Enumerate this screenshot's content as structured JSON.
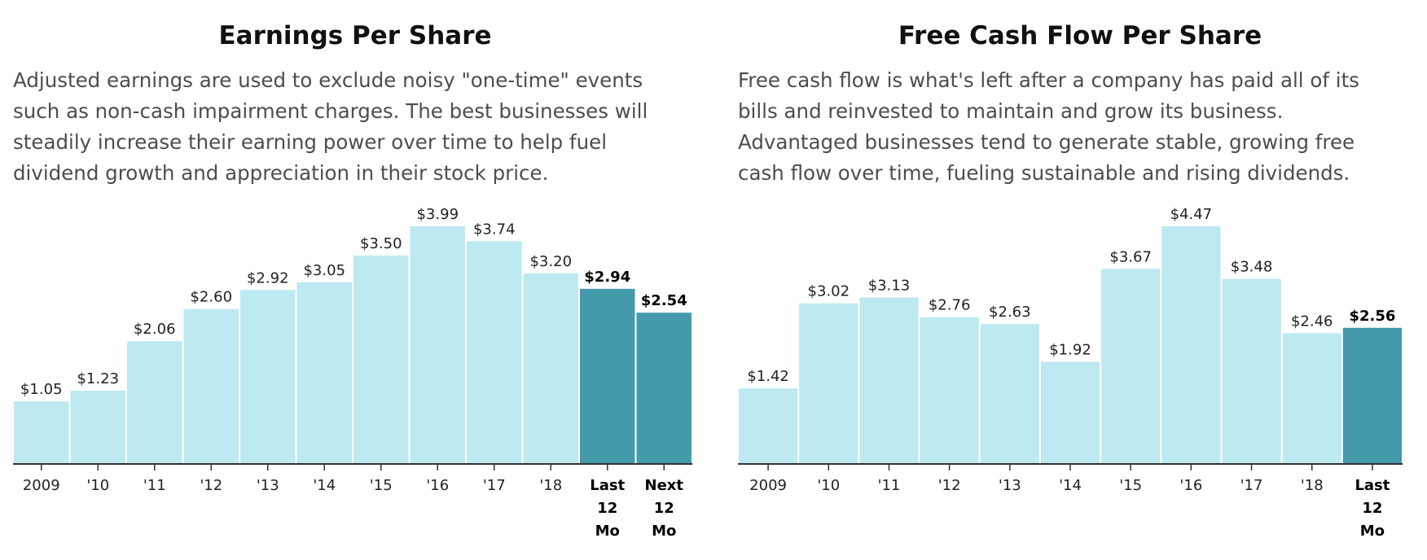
{
  "colors": {
    "bar_light": "#bde9f0",
    "bar_dark": "#459aac",
    "axis": "#333333"
  },
  "chart_data": [
    {
      "type": "bar",
      "title": "Earnings Per Share",
      "description": "Adjusted earnings are used to exclude noisy \"one-time\" events such as non-cash impairment charges. The best businesses will steadily increase their earning power over time to help fuel dividend growth and appreciation in their stock price.",
      "categories": [
        "2009",
        "'10",
        "'11",
        "'12",
        "'13",
        "'14",
        "'15",
        "'16",
        "'17",
        "'18",
        "Last 12 Mo",
        "Next 12 Mo"
      ],
      "values": [
        1.05,
        1.23,
        2.06,
        2.6,
        2.92,
        3.05,
        3.5,
        3.99,
        3.74,
        3.2,
        2.94,
        2.54
      ],
      "value_labels": [
        "$1.05",
        "$1.23",
        "$2.06",
        "$2.60",
        "$2.92",
        "$3.05",
        "$3.50",
        "$3.99",
        "$3.74",
        "$3.20",
        "$2.94",
        "$2.54"
      ],
      "highlighted": [
        false,
        false,
        false,
        false,
        false,
        false,
        false,
        false,
        false,
        false,
        true,
        true
      ],
      "xlabel": "",
      "ylabel": "",
      "ylim": [
        0,
        3.99
      ],
      "grid": false
    },
    {
      "type": "bar",
      "title": "Free Cash Flow Per Share",
      "description": "Free cash flow is what's left after a company has paid all of its bills and reinvested to maintain and grow its business. Advantaged businesses tend to generate stable, growing free cash flow over time, fueling sustainable and rising dividends.",
      "categories": [
        "2009",
        "'10",
        "'11",
        "'12",
        "'13",
        "'14",
        "'15",
        "'16",
        "'17",
        "'18",
        "Last 12 Mo"
      ],
      "values": [
        1.42,
        3.02,
        3.13,
        2.76,
        2.63,
        1.92,
        3.67,
        4.47,
        3.48,
        2.46,
        2.56
      ],
      "value_labels": [
        "$1.42",
        "$3.02",
        "$3.13",
        "$2.76",
        "$2.63",
        "$1.92",
        "$3.67",
        "$4.47",
        "$3.48",
        "$2.46",
        "$2.56"
      ],
      "highlighted": [
        false,
        false,
        false,
        false,
        false,
        false,
        false,
        false,
        false,
        false,
        true
      ],
      "xlabel": "",
      "ylabel": "",
      "ylim": [
        0,
        4.47
      ],
      "grid": false
    }
  ]
}
